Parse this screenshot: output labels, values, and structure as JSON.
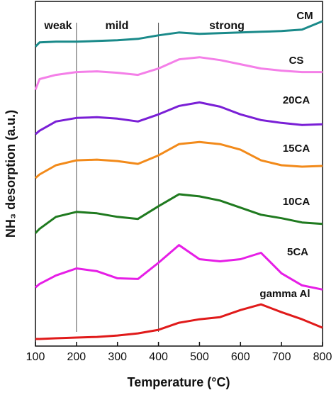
{
  "chart_data": {
    "type": "line",
    "x_label": "Temperature (°C)",
    "y_label": "NH₃ desorption (a.u.)",
    "region_labels": [
      "weak",
      "mild",
      "strong"
    ],
    "region_dividers": [
      200,
      400
    ],
    "x": [
      100,
      110,
      150,
      200,
      250,
      300,
      350,
      400,
      450,
      500,
      550,
      600,
      650,
      700,
      750,
      800
    ],
    "xlim": [
      100,
      800
    ],
    "xticks": [
      100,
      200,
      300,
      400,
      500,
      600,
      700,
      800
    ],
    "ylim": [
      0,
      488
    ],
    "series": [
      {
        "name": "CM",
        "color": "#1a8a8a",
        "values": [
          424,
          430,
          431,
          431,
          432,
          433,
          435,
          440,
          444,
          442,
          443,
          444,
          445,
          446,
          448,
          460
        ]
      },
      {
        "name": "CS",
        "color": "#f47fe8",
        "values": [
          363,
          378,
          384,
          388,
          389,
          387,
          384,
          393,
          406,
          409,
          405,
          399,
          393,
          390,
          388,
          388
        ]
      },
      {
        "name": "20CA",
        "color": "#7a1fd6",
        "values": [
          300,
          305,
          318,
          323,
          324,
          322,
          318,
          328,
          340,
          345,
          339,
          328,
          320,
          316,
          313,
          314
        ]
      },
      {
        "name": "15CA",
        "color": "#f28a1a",
        "values": [
          238,
          243,
          256,
          263,
          264,
          262,
          258,
          270,
          286,
          289,
          286,
          278,
          263,
          256,
          254,
          255
        ]
      },
      {
        "name": "10CA",
        "color": "#1f7a1f",
        "values": [
          160,
          166,
          183,
          190,
          188,
          183,
          180,
          198,
          215,
          212,
          206,
          196,
          186,
          181,
          175,
          173
        ]
      },
      {
        "name": "5CA",
        "color": "#e61ee6",
        "values": [
          83,
          88,
          100,
          110,
          106,
          96,
          95,
          118,
          143,
          123,
          120,
          123,
          132,
          103,
          86,
          80
        ]
      },
      {
        "name": "gamma Al",
        "color": "#e01a1a",
        "values": [
          10,
          10,
          11,
          12,
          13,
          15,
          18,
          23,
          33,
          38,
          41,
          51,
          59,
          48,
          38,
          26
        ]
      }
    ]
  }
}
